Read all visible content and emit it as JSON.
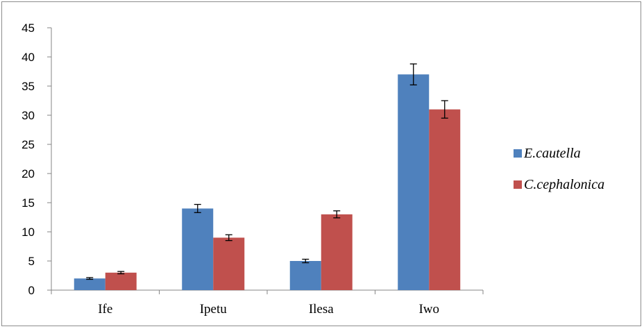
{
  "chart_data": {
    "type": "bar",
    "categories": [
      "Ife",
      "Ipetu",
      "Ilesa",
      "Iwo"
    ],
    "series": [
      {
        "name": "E.cautella",
        "values": [
          2,
          14,
          5,
          37
        ],
        "errors": [
          0.15,
          0.7,
          0.3,
          1.8
        ],
        "color": "#4f81bd"
      },
      {
        "name": "C.cephalonica",
        "values": [
          3,
          9,
          13,
          31
        ],
        "errors": [
          0.2,
          0.5,
          0.6,
          1.5
        ],
        "color": "#c0504d"
      }
    ],
    "ylim": [
      0,
      45
    ],
    "yticks": [
      0,
      5,
      10,
      15,
      20,
      25,
      30,
      35,
      40,
      45
    ],
    "legend": "right",
    "grid": false,
    "title": "",
    "xlabel": "",
    "ylabel": ""
  }
}
